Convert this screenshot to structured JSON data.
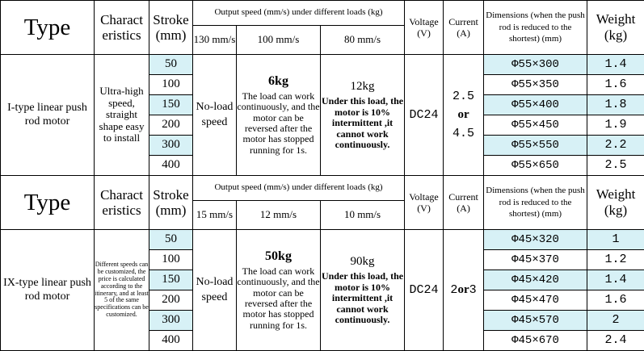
{
  "colors": {
    "highlight": "#d7f1f6",
    "border": "#000000",
    "text": "#000000"
  },
  "sections": [
    {
      "header": {
        "type": "Type",
        "characteristics": "Charact eristics",
        "stroke": "Stroke (mm)",
        "output_speed_title": "Output speed (mm/s) under different loads (kg)",
        "voltage": "Voltage (V)",
        "current": "Current (A)",
        "dimensions": "Dimensions (when the push rod is reduced to the shortest) (mm)",
        "weight": "Weight (kg)",
        "speeds": [
          "130 mm/s",
          "100 mm/s",
          "80 mm/s"
        ]
      },
      "model": "I-type linear push rod motor",
      "characteristics": "Ultra-high speed, straight shape easy to install",
      "no_load": "No-load speed",
      "load_a": {
        "kg": "6kg",
        "text": "The load can work continuously, and the motor can be reversed after the motor has stopped running for 1s."
      },
      "load_b": {
        "kg": "12kg",
        "text": "Under this load, the motor is 10% intermittent ,it cannot work continuously."
      },
      "voltage": "DC24",
      "current": {
        "a": "2.5",
        "or": "or",
        "b": "4.5"
      },
      "rows": [
        {
          "stroke": "50",
          "dimension": "Φ55×300",
          "weight": "1.4",
          "highlight": true
        },
        {
          "stroke": "100",
          "dimension": "Φ55×350",
          "weight": "1.6",
          "highlight": false
        },
        {
          "stroke": "150",
          "dimension": "Φ55×400",
          "weight": "1.8",
          "highlight": true
        },
        {
          "stroke": "200",
          "dimension": "Φ55×450",
          "weight": "1.9",
          "highlight": false
        },
        {
          "stroke": "300",
          "dimension": "Φ55×550",
          "weight": "2.2",
          "highlight": true
        },
        {
          "stroke": "400",
          "dimension": "Φ55×650",
          "weight": "2.5",
          "highlight": false
        }
      ]
    },
    {
      "header": {
        "type": "Type",
        "characteristics": "Charact eristics",
        "stroke": "Stroke (mm)",
        "output_speed_title": "Output speed (mm/s) under different loads (kg)",
        "voltage": "Voltage (V)",
        "current": "Current (A)",
        "dimensions": "Dimensions (when the push rod is reduced to the shortest) (mm)",
        "weight": "Weight (kg)",
        "speeds": [
          "15 mm/s",
          "12 mm/s",
          "10 mm/s"
        ]
      },
      "model": "IX-type linear push rod motor",
      "characteristics": "Different speeds can be customized, the price is calculated according to the itinerary, and at least 5 of the same specifications can be customized.",
      "no_load": "No-load speed",
      "load_a": {
        "kg": "50kg",
        "text": "The load can work continuously, and the motor can be reversed after the motor has stopped running for 1s."
      },
      "load_b": {
        "kg": "90kg",
        "text": "Under this load, the motor is 10% intermittent ,it cannot work continuously."
      },
      "voltage": "DC24",
      "current": {
        "a": "2",
        "or": "or",
        "b": "3"
      },
      "rows": [
        {
          "stroke": "50",
          "dimension": "Φ45×320",
          "weight": "1",
          "highlight": true
        },
        {
          "stroke": "100",
          "dimension": "Φ45×370",
          "weight": "1.2",
          "highlight": false
        },
        {
          "stroke": "150",
          "dimension": "Φ45×420",
          "weight": "1.4",
          "highlight": true
        },
        {
          "stroke": "200",
          "dimension": "Φ45×470",
          "weight": "1.6",
          "highlight": false
        },
        {
          "stroke": "300",
          "dimension": "Φ45×570",
          "weight": "2",
          "highlight": true
        },
        {
          "stroke": "400",
          "dimension": "Φ45×670",
          "weight": "2.4",
          "highlight": false
        }
      ]
    }
  ]
}
